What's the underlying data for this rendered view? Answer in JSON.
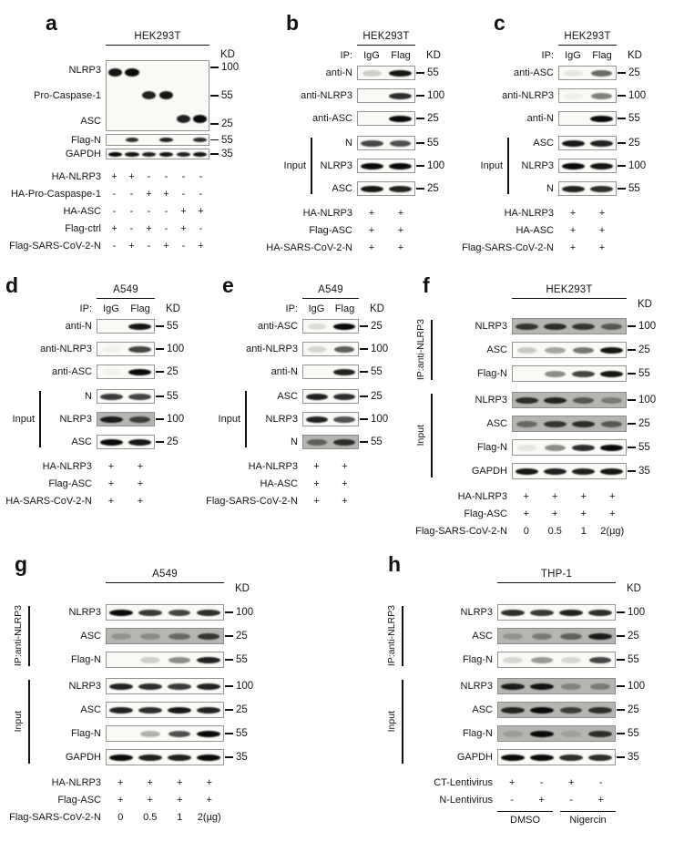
{
  "figure": {
    "panels": [
      {
        "id": "a",
        "letter": "a",
        "cell_line": "HEK293T",
        "kd_label": "KD",
        "lanes": 6,
        "ip_header": null,
        "pre_rows": [
          {
            "multi": true,
            "h": 78,
            "subrows": [
              {
                "label": "NLRP3",
                "marker": "100",
                "bands": [
                  0.95,
                  1,
                  0,
                  0,
                  0,
                  0
                ]
              },
              {
                "label": "Pro-Caspase-1",
                "marker": "55",
                "bands": [
                  0,
                  0,
                  0.9,
                  0.95,
                  0,
                  0
                ]
              },
              {
                "label": "ASC",
                "marker": "25",
                "bands": [
                  0,
                  0,
                  0,
                  0,
                  0.9,
                  1
                ]
              }
            ]
          },
          {
            "label": "Flag-N",
            "marker": "55",
            "h": 13,
            "bands": [
              0,
              0.85,
              0,
              0.9,
              0,
              0.85
            ]
          },
          {
            "label": "GAPDH",
            "marker": "35",
            "h": 12,
            "bands": [
              1,
              0.95,
              0.9,
              0.95,
              0.9,
              0.95
            ]
          }
        ],
        "sections": [],
        "conditions": [
          {
            "label": "HA-NLRP3",
            "values": [
              "+",
              "+",
              "-",
              "-",
              "-",
              "-"
            ]
          },
          {
            "label": "HA-Pro-Caspaspe-1",
            "values": [
              "-",
              "-",
              "+",
              "+",
              "-",
              "-"
            ]
          },
          {
            "label": "HA-ASC",
            "values": [
              "-",
              "-",
              "-",
              "-",
              "+",
              "+"
            ]
          },
          {
            "label": "Flag-ctrl",
            "values": [
              "+",
              "-",
              "+",
              "-",
              "+",
              "-"
            ]
          },
          {
            "label": "Flag-SARS-CoV-2-N",
            "values": [
              "-",
              "+",
              "-",
              "+",
              "-",
              "+"
            ]
          }
        ],
        "groups": null
      },
      {
        "id": "b",
        "letter": "b",
        "cell_line": "HEK293T",
        "kd_label": "KD",
        "lanes": 2,
        "ip_header": {
          "label": "IP:",
          "lane_labels": [
            "IgG",
            "Flag"
          ]
        },
        "pre_rows": [
          {
            "label": "anti-N",
            "marker": "55",
            "bands": [
              0.18,
              0.95
            ]
          },
          {
            "label": "anti-NLRP3",
            "marker": "100",
            "bands": [
              0,
              0.85
            ]
          },
          {
            "label": "anti-ASC",
            "marker": "25",
            "bands": [
              0,
              1
            ]
          }
        ],
        "sections": [
          {
            "label": "Input",
            "rotated": false,
            "rows": [
              {
                "label": "N",
                "marker": "55",
                "bands": [
                  0.75,
                  0.7
                ]
              },
              {
                "label": "NLRP3",
                "marker": "100",
                "bands": [
                  1,
                  1
                ]
              },
              {
                "label": "ASC",
                "marker": "25",
                "bands": [
                  0.95,
                  0.9
                ]
              }
            ]
          }
        ],
        "conditions": [
          {
            "label": "HA-NLRP3",
            "values": [
              "+",
              "+"
            ]
          },
          {
            "label": "Flag-ASC",
            "values": [
              "+",
              "+"
            ]
          },
          {
            "label": "HA-SARS-CoV-2-N",
            "values": [
              "+",
              "+"
            ]
          }
        ],
        "groups": null
      },
      {
        "id": "c",
        "letter": "c",
        "cell_line": "HEK293T",
        "kd_label": "KD",
        "lanes": 2,
        "ip_header": {
          "label": "IP:",
          "lane_labels": [
            "IgG",
            "Flag"
          ]
        },
        "pre_rows": [
          {
            "label": "anti-ASC",
            "marker": "25",
            "bands": [
              0.08,
              0.6
            ]
          },
          {
            "label": "anti-NLRP3",
            "marker": "100",
            "bands": [
              0.04,
              0.5
            ]
          },
          {
            "label": "anti-N",
            "marker": "55",
            "bands": [
              0,
              1
            ]
          }
        ],
        "sections": [
          {
            "label": "Input",
            "rotated": false,
            "rows": [
              {
                "label": "ASC",
                "marker": "25",
                "bands": [
                  0.95,
                  0.9
                ]
              },
              {
                "label": "NLRP3",
                "marker": "100",
                "bands": [
                  1,
                  0.95
                ]
              },
              {
                "label": "N",
                "marker": "55",
                "bands": [
                  0.9,
                  0.85
                ]
              }
            ]
          }
        ],
        "conditions": [
          {
            "label": "HA-NLRP3",
            "values": [
              "+",
              "+"
            ]
          },
          {
            "label": "HA-ASC",
            "values": [
              "+",
              "+"
            ]
          },
          {
            "label": "Flag-SARS-CoV-2-N",
            "values": [
              "+",
              "+"
            ]
          }
        ],
        "groups": null
      },
      {
        "id": "d",
        "letter": "d",
        "cell_line": "A549",
        "kd_label": "KD",
        "lanes": 2,
        "ip_header": {
          "label": "IP:",
          "lane_labels": [
            "IgG",
            "Flag"
          ]
        },
        "pre_rows": [
          {
            "label": "anti-N",
            "marker": "55",
            "bands": [
              0,
              0.95
            ]
          },
          {
            "label": "anti-NLRP3",
            "marker": "100",
            "bands": [
              0.03,
              0.75
            ]
          },
          {
            "label": "anti-ASC",
            "marker": "25",
            "bands": [
              0.03,
              1
            ]
          }
        ],
        "sections": [
          {
            "label": "Input",
            "rotated": false,
            "rows": [
              {
                "label": "N",
                "marker": "55",
                "bands": [
                  0.8,
                  0.75
                ]
              },
              {
                "label": "NLRP3",
                "marker": "100",
                "bg": "gray",
                "bands": [
                  0.9,
                  0.7
                ]
              },
              {
                "label": "ASC",
                "marker": "25",
                "bands": [
                  1,
                  0.95
                ]
              }
            ]
          }
        ],
        "conditions": [
          {
            "label": "HA-NLRP3",
            "values": [
              "+",
              "+"
            ]
          },
          {
            "label": "Flag-ASC",
            "values": [
              "+",
              "+"
            ]
          },
          {
            "label": "HA-SARS-CoV-2-N",
            "values": [
              "+",
              "+"
            ]
          }
        ],
        "groups": null
      },
      {
        "id": "e",
        "letter": "e",
        "cell_line": "A549",
        "kd_label": "KD",
        "lanes": 2,
        "ip_header": {
          "label": "IP:",
          "lane_labels": [
            "IgG",
            "Flag"
          ]
        },
        "pre_rows": [
          {
            "label": "anti-ASC",
            "marker": "25",
            "bands": [
              0.12,
              1
            ]
          },
          {
            "label": "anti-NLRP3",
            "marker": "100",
            "bands": [
              0.15,
              0.65
            ]
          },
          {
            "label": "anti-N",
            "marker": "55",
            "bands": [
              0,
              0.9
            ]
          }
        ],
        "sections": [
          {
            "label": "Input",
            "rotated": false,
            "rows": [
              {
                "label": "ASC",
                "marker": "25",
                "bands": [
                  0.9,
                  0.85
                ]
              },
              {
                "label": "NLRP3",
                "marker": "100",
                "bands": [
                  0.9,
                  0.7
                ]
              },
              {
                "label": "N",
                "marker": "55",
                "bg": "gray",
                "bands": [
                  0.5,
                  0.8
                ]
              }
            ]
          }
        ],
        "conditions": [
          {
            "label": "HA-NLRP3",
            "values": [
              "+",
              "+"
            ]
          },
          {
            "label": "HA-ASC",
            "values": [
              "+",
              "+"
            ]
          },
          {
            "label": "Flag-SARS-CoV-2-N",
            "values": [
              "+",
              "+"
            ]
          }
        ],
        "groups": null
      },
      {
        "id": "f",
        "letter": "f",
        "cell_line": "HEK293T",
        "kd_label": "KD",
        "lanes": 4,
        "ip_header": null,
        "pre_rows": [],
        "sections": [
          {
            "label": "IP:anti-NLRP3",
            "rotated": true,
            "rows": [
              {
                "label": "NLRP3",
                "marker": "100",
                "bg": "gray",
                "bands": [
                  0.75,
                  0.8,
                  0.75,
                  0.55
                ]
              },
              {
                "label": "ASC",
                "marker": "25",
                "bands": [
                  0.2,
                  0.35,
                  0.55,
                  0.95
                ]
              },
              {
                "label": "Flag-N",
                "marker": "55",
                "bands": [
                  0,
                  0.45,
                  0.75,
                  0.95
                ]
              }
            ]
          },
          {
            "label": "Input",
            "rotated": true,
            "rows": [
              {
                "label": "NLRP3",
                "marker": "100",
                "bg": "gray",
                "bands": [
                  0.8,
                  0.85,
                  0.55,
                  0.35
                ]
              },
              {
                "label": "ASC",
                "marker": "25",
                "bg": "gray",
                "bands": [
                  0.45,
                  0.75,
                  0.8,
                  0.55
                ]
              },
              {
                "label": "Flag-N",
                "marker": "55",
                "bands": [
                  0.08,
                  0.45,
                  0.85,
                  1
                ]
              },
              {
                "label": "GAPDH",
                "marker": "35",
                "bands": [
                  0.95,
                  0.9,
                  0.9,
                  0.95
                ]
              }
            ]
          }
        ],
        "conditions": [
          {
            "label": "HA-NLRP3",
            "values": [
              "+",
              "+",
              "+",
              "+"
            ]
          },
          {
            "label": "Flag-ASC",
            "values": [
              "+",
              "+",
              "+",
              "+"
            ]
          },
          {
            "label": "Flag-SARS-CoV-2-N",
            "values": [
              "0",
              "0.5",
              "1",
              "2(µg)"
            ]
          }
        ],
        "groups": null
      },
      {
        "id": "g",
        "letter": "g",
        "cell_line": "A549",
        "kd_label": "KD",
        "lanes": 4,
        "ip_header": null,
        "pre_rows": [],
        "sections": [
          {
            "label": "IP:anti-NLRP3",
            "rotated": true,
            "rows": [
              {
                "label": "NLRP3",
                "marker": "100",
                "bands": [
                  1,
                  0.8,
                  0.75,
                  0.85
                ]
              },
              {
                "label": "ASC",
                "marker": "25",
                "bg": "gray",
                "bands": [
                  0.2,
                  0.25,
                  0.45,
                  0.75
                ]
              },
              {
                "label": "Flag-N",
                "marker": "55",
                "bands": [
                  0,
                  0.18,
                  0.45,
                  0.9
                ]
              }
            ]
          },
          {
            "label": "Input",
            "rotated": true,
            "rows": [
              {
                "label": "NLRP3",
                "marker": "100",
                "bands": [
                  0.9,
                  0.85,
                  0.8,
                  0.9
                ]
              },
              {
                "label": "ASC",
                "marker": "25",
                "bands": [
                  0.9,
                  0.85,
                  0.95,
                  0.9
                ]
              },
              {
                "label": "Flag-N",
                "marker": "55",
                "bands": [
                  0,
                  0.3,
                  0.7,
                  1
                ]
              },
              {
                "label": "GAPDH",
                "marker": "35",
                "bands": [
                  1,
                  0.9,
                  0.9,
                  1
                ]
              }
            ]
          }
        ],
        "conditions": [
          {
            "label": "HA-NLRP3",
            "values": [
              "+",
              "+",
              "+",
              "+"
            ]
          },
          {
            "label": "Flag-ASC",
            "values": [
              "+",
              "+",
              "+",
              "+"
            ]
          },
          {
            "label": "Flag-SARS-CoV-2-N",
            "values": [
              "0",
              "0.5",
              "1",
              "2(µg)"
            ]
          }
        ],
        "groups": null
      },
      {
        "id": "h",
        "letter": "h",
        "cell_line": "THP-1",
        "kd_label": "KD",
        "lanes": 4,
        "ip_header": null,
        "pre_rows": [],
        "sections": [
          {
            "label": "IP:anti-NLRP3",
            "rotated": true,
            "rows": [
              {
                "label": "NLRP3",
                "marker": "100",
                "bands": [
                  0.85,
                  0.8,
                  0.9,
                  0.85
                ]
              },
              {
                "label": "ASC",
                "marker": "25",
                "bg": "gray",
                "bands": [
                  0.2,
                  0.35,
                  0.5,
                  0.9
                ]
              },
              {
                "label": "Flag-N",
                "marker": "55",
                "bands": [
                  0.15,
                  0.4,
                  0.15,
                  0.75
                ]
              }
            ]
          },
          {
            "label": "Input",
            "rotated": true,
            "rows": [
              {
                "label": "NLRP3",
                "marker": "100",
                "bg": "gray",
                "bands": [
                  0.9,
                  0.95,
                  0.3,
                  0.35
                ]
              },
              {
                "label": "ASC",
                "marker": "25",
                "bg": "gray",
                "bands": [
                  0.85,
                  1,
                  0.7,
                  0.8
                ]
              },
              {
                "label": "Flag-N",
                "marker": "55",
                "bg": "gray",
                "bands": [
                  0.15,
                  1,
                  0.12,
                  0.8
                ]
              },
              {
                "label": "GAPDH",
                "marker": "35",
                "bands": [
                  1,
                  1,
                  0.85,
                  0.85
                ]
              }
            ]
          }
        ],
        "conditions": [
          {
            "label": "CT-Lentivirus",
            "values": [
              "+",
              "-",
              "+",
              "-"
            ]
          },
          {
            "label": "N-Lentivirus",
            "values": [
              "-",
              "+",
              "-",
              "+"
            ]
          }
        ],
        "groups": [
          {
            "label": "DMSO",
            "span": 2
          },
          {
            "label": "Nigercin",
            "span": 2
          }
        ]
      }
    ]
  }
}
